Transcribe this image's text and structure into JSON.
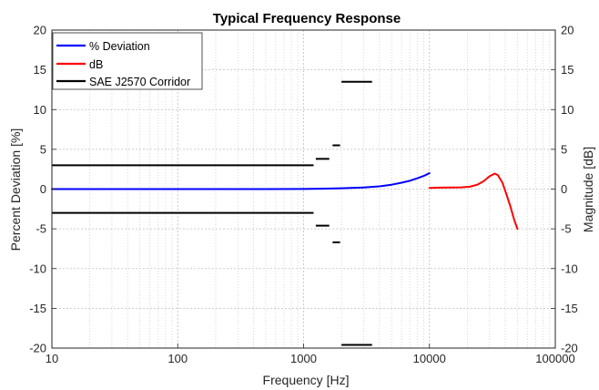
{
  "chart_data": {
    "type": "line",
    "title": "Typical Frequency Response",
    "xlabel": "Frequency [Hz]",
    "ylabel_left": "Percent Deviation [%]",
    "ylabel_right": "Magnitude [dB]",
    "x_scale": "log",
    "xlim": [
      10,
      100000
    ],
    "ylim": [
      -20,
      20
    ],
    "x_ticks": [
      10,
      100,
      1000,
      10000,
      100000
    ],
    "x_tick_labels": [
      "10",
      "100",
      "1000",
      "10000",
      "100000"
    ],
    "y_ticks": [
      -20,
      -15,
      -10,
      -5,
      0,
      5,
      10,
      15,
      20
    ],
    "y_tick_labels": [
      "-20",
      "-15",
      "-10",
      "-5",
      "0",
      "5",
      "10",
      "15",
      "20"
    ],
    "grid": true,
    "legend_position": "top-left",
    "series": [
      {
        "name": "% Deviation",
        "color": "#0000ff",
        "points": [
          [
            10,
            0
          ],
          [
            100,
            0
          ],
          [
            500,
            0
          ],
          [
            1000,
            0.02
          ],
          [
            1500,
            0.05
          ],
          [
            2000,
            0.1
          ],
          [
            3000,
            0.2
          ],
          [
            4000,
            0.35
          ],
          [
            5000,
            0.55
          ],
          [
            6000,
            0.8
          ],
          [
            7000,
            1.05
          ],
          [
            8000,
            1.35
          ],
          [
            9000,
            1.65
          ],
          [
            10000,
            2.0
          ]
        ]
      },
      {
        "name": "dB",
        "color": "#ff0000",
        "points": [
          [
            10000,
            0.15
          ],
          [
            12000,
            0.18
          ],
          [
            15000,
            0.2
          ],
          [
            18000,
            0.22
          ],
          [
            21000,
            0.3
          ],
          [
            24000,
            0.55
          ],
          [
            27000,
            1.0
          ],
          [
            30000,
            1.6
          ],
          [
            33000,
            1.95
          ],
          [
            35000,
            1.75
          ],
          [
            38000,
            0.8
          ],
          [
            41000,
            -0.7
          ],
          [
            44000,
            -2.2
          ],
          [
            47000,
            -3.8
          ],
          [
            50000,
            -5.0
          ]
        ]
      },
      {
        "name": "SAE J2570 Corridor",
        "color": "#000000",
        "segments": [
          [
            [
              10,
              3
            ],
            [
              1200,
              3
            ]
          ],
          [
            [
              10,
              -3
            ],
            [
              1200,
              -3
            ]
          ],
          [
            [
              1250,
              3.8
            ],
            [
              1600,
              3.8
            ]
          ],
          [
            [
              1250,
              -4.6
            ],
            [
              1600,
              -4.6
            ]
          ],
          [
            [
              1700,
              5.5
            ],
            [
              1950,
              5.5
            ]
          ],
          [
            [
              1700,
              -6.7
            ],
            [
              1950,
              -6.7
            ]
          ],
          [
            [
              2000,
              13.5
            ],
            [
              3500,
              13.5
            ]
          ],
          [
            [
              2000,
              -19.6
            ],
            [
              3500,
              -19.6
            ]
          ]
        ]
      }
    ]
  }
}
